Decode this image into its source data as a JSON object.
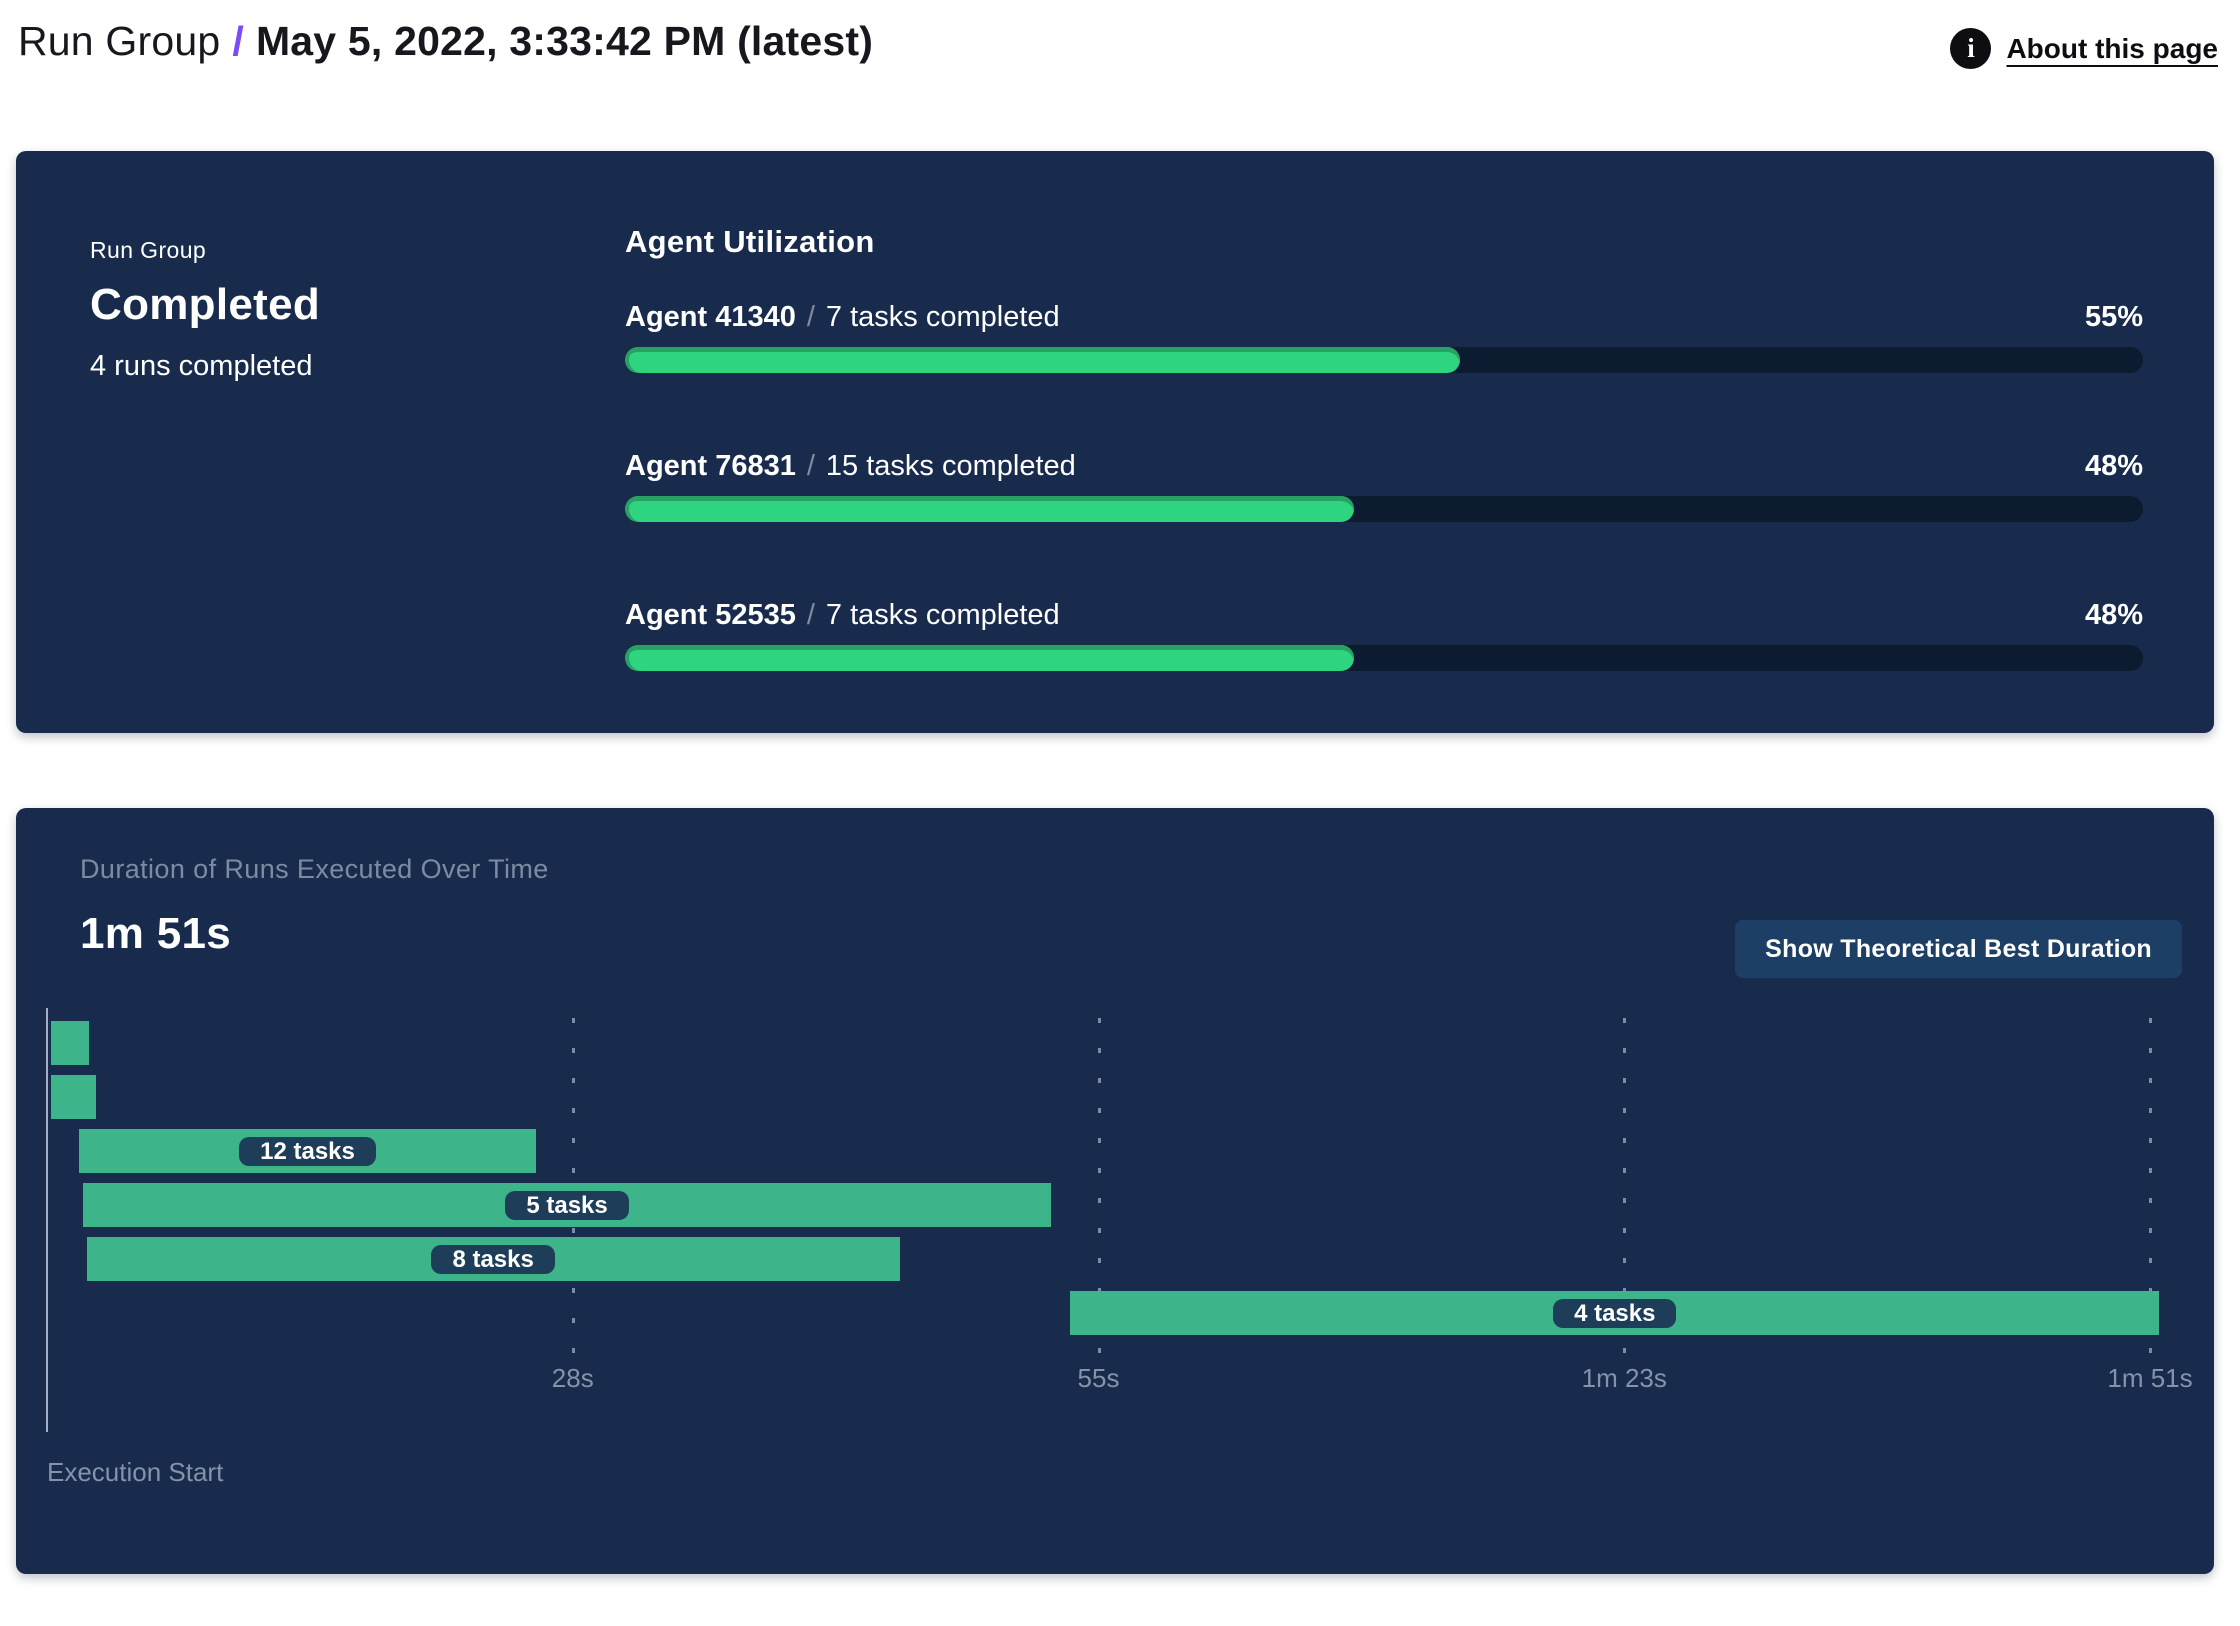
{
  "header": {
    "breadcrumb_prefix": "Run Group",
    "separator": "/",
    "title": "May 5, 2022, 3:33:42 PM (latest)",
    "about_link": "About this page",
    "info_icon_glyph": "i"
  },
  "run_group_panel": {
    "label": "Run Group",
    "status": "Completed",
    "runs_summary": "4 runs completed",
    "utilization_title": "Agent Utilization"
  },
  "duration_panel": {
    "title": "Duration of Runs Executed Over Time",
    "total_duration": "1m 51s",
    "button_label": "Show Theoretical Best Duration",
    "execution_start_label": "Execution Start"
  },
  "colors": {
    "panel_background": "#182b4d",
    "progress_track": "#0d1b30",
    "progress_fill": "#2ed47f",
    "progress_fill_edge": "#28a263",
    "gantt_bar": "#3db489",
    "pill_background": "#1d3d58",
    "button_background": "#1d3f66",
    "muted_text": "#8493a9",
    "breadcrumb_slash": "#7b4bf7"
  },
  "chart_data": [
    {
      "type": "bar",
      "title": "Agent Utilization",
      "orientation": "horizontal",
      "categories": [
        "Agent 41340",
        "Agent 76831",
        "Agent 52535"
      ],
      "annotations": [
        "7 tasks completed",
        "15 tasks completed",
        "7 tasks completed"
      ],
      "values": [
        55,
        48,
        48
      ],
      "value_suffix": "%",
      "xlim": [
        0,
        100
      ],
      "separator": "/"
    },
    {
      "type": "gantt",
      "title": "Duration of Runs Executed Over Time",
      "total_duration_label": "1m 51s",
      "x_axis_label": "Execution Start",
      "axis": {
        "min_seconds": 0,
        "max_seconds": 111,
        "ticks": [
          {
            "seconds": 27.75,
            "label": "28s"
          },
          {
            "seconds": 55.5,
            "label": "55s"
          },
          {
            "seconds": 83.25,
            "label": "1m 23s"
          },
          {
            "seconds": 111,
            "label": "1m 51s"
          }
        ]
      },
      "bars": [
        {
          "start_seconds": 0.2,
          "end_seconds": 2.2,
          "label": null
        },
        {
          "start_seconds": 0.2,
          "end_seconds": 2.6,
          "label": null
        },
        {
          "start_seconds": 1.7,
          "end_seconds": 25.8,
          "label": "12 tasks"
        },
        {
          "start_seconds": 1.9,
          "end_seconds": 53.0,
          "label": "5 tasks"
        },
        {
          "start_seconds": 2.1,
          "end_seconds": 45.0,
          "label": "8 tasks"
        },
        {
          "start_seconds": 54.0,
          "end_seconds": 111.5,
          "label": "4 tasks"
        }
      ]
    }
  ]
}
